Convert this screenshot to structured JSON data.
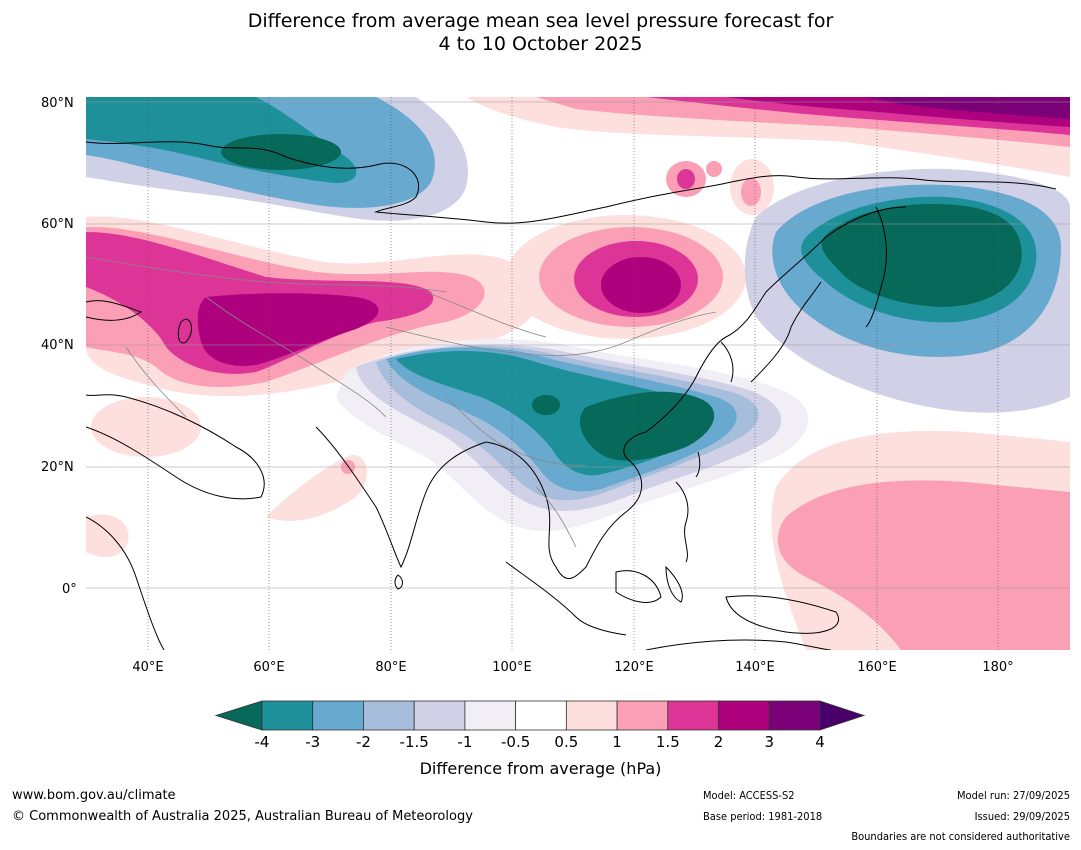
{
  "title_line1": "Difference from average mean sea level pressure forecast for",
  "title_line2": "4 to 10 October 2025",
  "map": {
    "lat_labels": [
      "80°N",
      "60°N",
      "40°N",
      "20°N",
      "0°"
    ],
    "lon_labels": [
      "40°E",
      "60°E",
      "80°E",
      "100°E",
      "120°E",
      "140°E",
      "160°E",
      "180°"
    ]
  },
  "colorbar": {
    "title": "Difference from average (hPa)",
    "ticks": [
      "-4",
      "-3",
      "-2",
      "-1.5",
      "-1",
      "-0.5",
      "0.5",
      "1",
      "1.5",
      "2",
      "3",
      "4"
    ],
    "colors": [
      "#07695a",
      "#1d9099",
      "#67a9cf",
      "#a6bddb",
      "#d0d1e6",
      "#f1eef6",
      "#ffffff",
      "#fde0dd",
      "#fa9fb5",
      "#dd3497",
      "#ae017e",
      "#7a0177",
      "#49006a"
    ]
  },
  "footer": {
    "website": "www.bom.gov.au/climate",
    "copyright": "© Commonwealth of Australia 2025, Australian Bureau of Meteorology",
    "model": "Model: ACCESS-S2",
    "base_period": "Base period: 1981-2018",
    "model_run": "Model run: 27/09/2025",
    "issued": "Issued: 29/09/2025",
    "disclaimer": "Boundaries are not considered authoritative"
  }
}
